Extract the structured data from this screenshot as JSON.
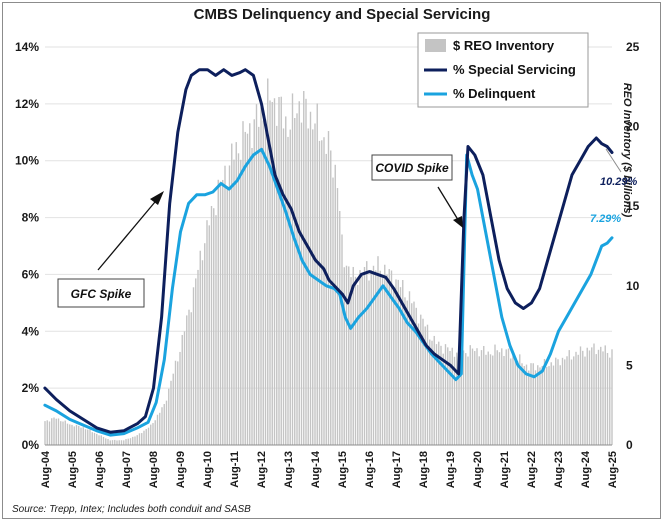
{
  "chart_data": {
    "type": "line",
    "title": "CMBS Delinquency and Special Servicing",
    "source": "Source: Trepp, Intex; Includes both conduit and SASB",
    "y_left": {
      "ticks": [
        "0%",
        "2%",
        "4%",
        "6%",
        "8%",
        "10%",
        "12%",
        "14%"
      ],
      "range": [
        0,
        14
      ]
    },
    "y_right": {
      "label": "REO Inventory ($ billions)",
      "ticks": [
        "0",
        "5",
        "10",
        "15",
        "20",
        "25"
      ],
      "range": [
        0,
        25
      ]
    },
    "x_range": [
      2004.583,
      2025.583
    ],
    "x_ticks": [
      "Aug-04",
      "Aug-05",
      "Aug-06",
      "Aug-07",
      "Aug-08",
      "Aug-09",
      "Aug-10",
      "Aug-11",
      "Aug-12",
      "Aug-13",
      "Aug-14",
      "Aug-15",
      "Aug-16",
      "Aug-17",
      "Aug-18",
      "Aug-19",
      "Aug-20",
      "Aug-21",
      "Aug-22",
      "Aug-23",
      "Aug-24",
      "Aug-25"
    ],
    "legend": [
      "$ REO Inventory",
      "% Special Servicing",
      "% Delinquent"
    ],
    "colors": {
      "reo": "#c4c4c4",
      "special": "#0d1f5c",
      "delinquent": "#1aa3df"
    },
    "series": [
      {
        "name": "$ REO Inventory",
        "type": "bar",
        "axis": "right",
        "x": [
          2004.58,
          2005.0,
          2005.5,
          2006.0,
          2006.5,
          2007.0,
          2007.5,
          2008.0,
          2008.5,
          2009.0,
          2009.5,
          2010.0,
          2010.5,
          2011.0,
          2011.5,
          2012.0,
          2012.5,
          2012.8,
          2013.0,
          2013.3,
          2013.6,
          2014.0,
          2014.5,
          2015.0,
          2015.4,
          2015.6,
          2016.0,
          2016.5,
          2017.0,
          2017.5,
          2018.0,
          2018.5,
          2019.0,
          2019.5,
          2020.0,
          2020.5,
          2021.0,
          2021.5,
          2022.0,
          2022.5,
          2023.0,
          2023.5,
          2024.0,
          2024.5,
          2025.0,
          2025.583
        ],
        "values": [
          1.5,
          1.7,
          1.3,
          1.1,
          0.7,
          0.3,
          0.3,
          0.6,
          1.2,
          2.5,
          5.5,
          9.0,
          13.0,
          16.0,
          18.0,
          19.5,
          20.5,
          21.5,
          21.8,
          21.0,
          20.0,
          21.5,
          20.5,
          19.0,
          17.0,
          12.0,
          10.5,
          11.0,
          11.2,
          10.5,
          9.5,
          8.0,
          6.5,
          6.0,
          5.8,
          6.0,
          5.8,
          6.0,
          5.5,
          4.9,
          5.0,
          5.2,
          5.6,
          5.9,
          6.1,
          5.8
        ]
      },
      {
        "name": "% Special Servicing",
        "type": "line",
        "axis": "left",
        "x": [
          2004.58,
          2005.0,
          2005.5,
          2006.0,
          2006.5,
          2007.0,
          2007.5,
          2008.0,
          2008.3,
          2008.6,
          2008.9,
          2009.2,
          2009.5,
          2009.8,
          2010.0,
          2010.3,
          2010.6,
          2010.9,
          2011.2,
          2011.5,
          2011.8,
          2012.0,
          2012.3,
          2012.6,
          2012.9,
          2013.1,
          2013.4,
          2013.7,
          2014.0,
          2014.3,
          2014.6,
          2014.9,
          2015.1,
          2015.4,
          2015.6,
          2015.8,
          2016.0,
          2016.3,
          2016.6,
          2016.9,
          2017.2,
          2017.5,
          2017.8,
          2018.1,
          2018.4,
          2018.7,
          2019.0,
          2019.3,
          2019.6,
          2019.9,
          2020.1,
          2020.25,
          2020.5,
          2020.8,
          2021.1,
          2021.4,
          2021.7,
          2022.0,
          2022.3,
          2022.6,
          2022.9,
          2023.2,
          2023.5,
          2023.8,
          2024.1,
          2024.4,
          2024.7,
          2025.0,
          2025.2,
          2025.4,
          2025.583
        ],
        "values": [
          2.0,
          1.6,
          1.2,
          0.9,
          0.6,
          0.45,
          0.5,
          0.75,
          1.0,
          2.0,
          4.5,
          8.5,
          11.0,
          12.5,
          13.0,
          13.2,
          13.2,
          13.0,
          13.2,
          13.0,
          13.1,
          13.2,
          13.0,
          12.0,
          10.5,
          9.5,
          8.8,
          8.3,
          7.5,
          7.0,
          6.5,
          6.2,
          5.8,
          5.5,
          5.3,
          5.0,
          5.6,
          6.0,
          6.1,
          6.0,
          5.9,
          5.5,
          5.0,
          4.5,
          4.0,
          3.5,
          3.2,
          3.0,
          2.8,
          2.5,
          8.0,
          10.5,
          10.2,
          9.5,
          8.0,
          6.5,
          5.5,
          5.0,
          4.8,
          5.0,
          5.5,
          6.5,
          7.5,
          8.5,
          9.5,
          10.0,
          10.5,
          10.8,
          10.6,
          10.5,
          10.29
        ]
      },
      {
        "name": "% Delinquent",
        "type": "line",
        "axis": "left",
        "x": [
          2004.58,
          2005.0,
          2005.5,
          2006.0,
          2006.5,
          2007.0,
          2007.5,
          2008.0,
          2008.4,
          2008.7,
          2009.0,
          2009.3,
          2009.6,
          2009.9,
          2010.2,
          2010.5,
          2010.8,
          2011.1,
          2011.4,
          2011.7,
          2012.0,
          2012.3,
          2012.6,
          2012.9,
          2013.2,
          2013.5,
          2013.8,
          2014.1,
          2014.4,
          2014.7,
          2015.0,
          2015.3,
          2015.5,
          2015.7,
          2015.9,
          2016.2,
          2016.5,
          2016.8,
          2017.1,
          2017.4,
          2017.7,
          2018.0,
          2018.3,
          2018.6,
          2018.9,
          2019.2,
          2019.5,
          2019.8,
          2020.0,
          2020.2,
          2020.4,
          2020.6,
          2020.9,
          2021.2,
          2021.5,
          2021.8,
          2022.1,
          2022.4,
          2022.7,
          2023.0,
          2023.3,
          2023.6,
          2023.9,
          2024.2,
          2024.5,
          2024.8,
          2025.0,
          2025.2,
          2025.4,
          2025.583
        ],
        "values": [
          1.4,
          1.2,
          0.9,
          0.7,
          0.5,
          0.35,
          0.4,
          0.6,
          0.8,
          1.5,
          3.0,
          5.5,
          7.5,
          8.5,
          8.8,
          8.8,
          8.9,
          9.2,
          9.0,
          9.3,
          9.8,
          10.2,
          10.4,
          9.8,
          9.0,
          8.2,
          7.3,
          6.5,
          6.0,
          5.8,
          5.6,
          5.5,
          5.3,
          4.5,
          4.1,
          4.5,
          4.8,
          5.2,
          5.6,
          5.2,
          4.8,
          4.3,
          4.0,
          3.6,
          3.2,
          2.9,
          2.6,
          2.3,
          2.5,
          10.2,
          9.5,
          9.0,
          7.5,
          6.0,
          4.5,
          3.5,
          2.8,
          2.5,
          2.4,
          2.6,
          3.2,
          4.0,
          4.5,
          5.0,
          5.5,
          6.0,
          6.5,
          7.0,
          7.1,
          7.29
        ]
      }
    ],
    "annotations": {
      "gfc": "GFC Spike",
      "covid": "COVID Spike",
      "special_last": "10.29%",
      "delinquent_last": "7.29%"
    }
  }
}
